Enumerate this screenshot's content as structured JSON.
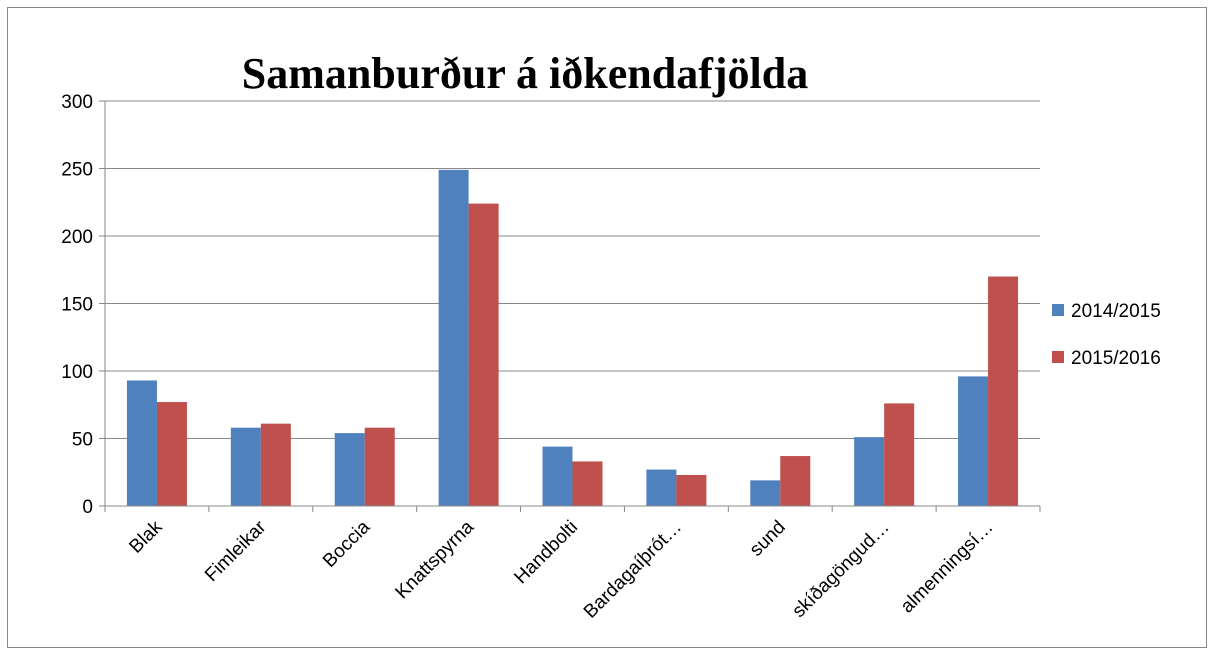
{
  "chart_data": {
    "type": "bar",
    "title": "Samanburður á iðkendafjölda",
    "categories": [
      "Blak",
      "Fimleikar",
      "Boccia",
      "Knattspyrna",
      "Handbolti",
      "Bardagaíþrót…",
      "sund",
      "skíðagöngud…",
      "almenningsí…"
    ],
    "series": [
      {
        "name": "2014/2015",
        "color": "#4f81bd",
        "values": [
          93,
          58,
          54,
          249,
          44,
          27,
          19,
          51,
          96
        ]
      },
      {
        "name": "2015/2016",
        "color": "#c0504d",
        "values": [
          77,
          61,
          58,
          224,
          33,
          23,
          37,
          76,
          170
        ]
      }
    ],
    "ylim": [
      0,
      300
    ],
    "yticks": [
      0,
      50,
      100,
      150,
      200,
      250,
      300
    ],
    "grid": true,
    "legend": "right"
  }
}
